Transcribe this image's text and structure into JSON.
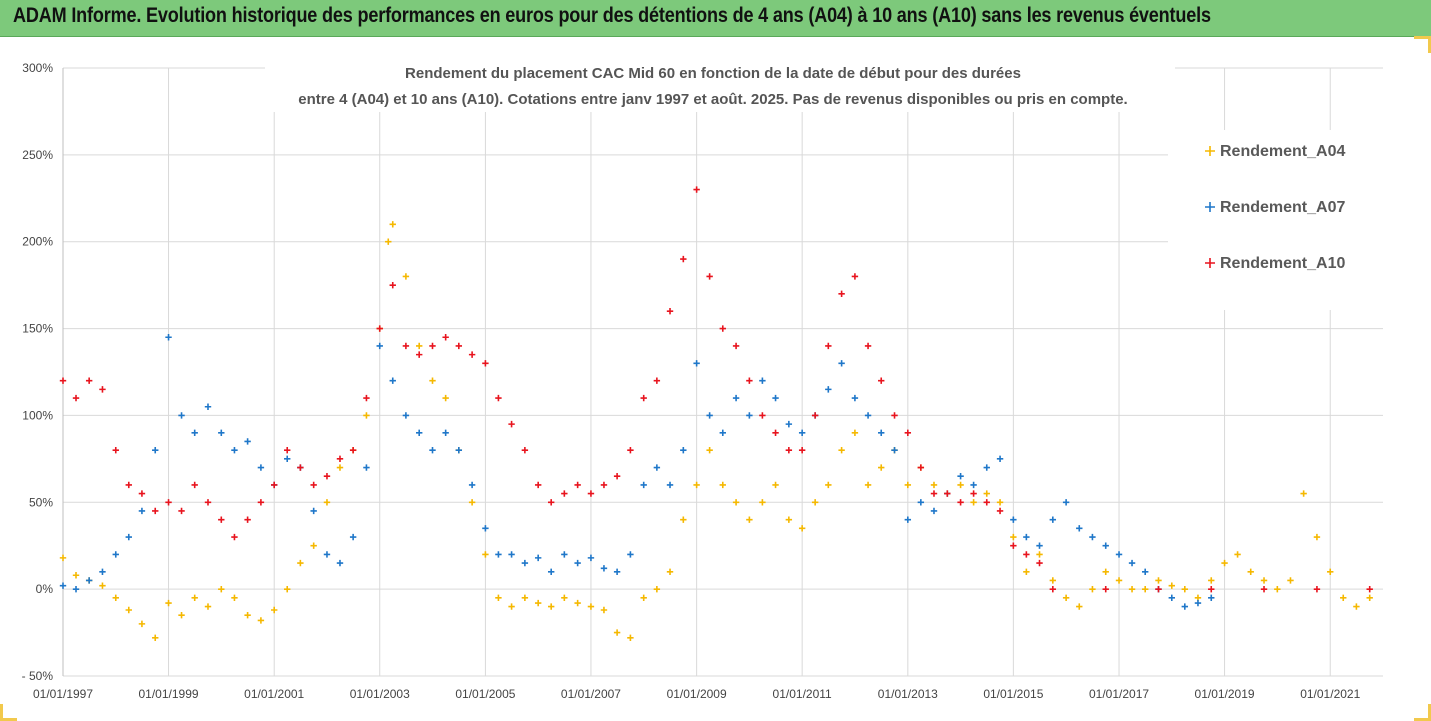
{
  "banner": {
    "title": "ADAM Informe. Evolution historique des performances en euros pour des détentions de 4 ans (A04) à 10 ans (A10) sans les revenus éventuels",
    "background": "#7dc97b"
  },
  "chart_data": {
    "type": "scatter",
    "marker": "plus",
    "title_lines": [
      "Rendement du placement CAC Mid 60 en fonction de la date de début pour des durées",
      "entre 4 (A04) et 10 ans (A10). Cotations entre janv 1997 et août. 2025. Pas de revenus disponibles ou pris en compte."
    ],
    "xlabel": "",
    "ylabel": "",
    "x_ticks": [
      "01/01/1997",
      "01/01/1999",
      "01/01/2001",
      "01/01/2003",
      "01/01/2005",
      "01/01/2007",
      "01/01/2009",
      "01/01/2011",
      "01/01/2013",
      "01/01/2015",
      "01/01/2017",
      "01/01/2019",
      "01/01/2021"
    ],
    "xlim": [
      "1997-01-01",
      "2022-01-01"
    ],
    "y_ticks": [
      "- 50%",
      "0%",
      "50%",
      "100%",
      "150%",
      "200%",
      "250%",
      "300%"
    ],
    "ylim": [
      -50,
      300
    ],
    "y_unit": "%",
    "grid": "horizontal and vertical",
    "legend_position": "right",
    "series": [
      {
        "name": "Rendement_A04",
        "color": "#f5b800",
        "points": [
          [
            "1997-01-01",
            18
          ],
          [
            "1997-04-01",
            8
          ],
          [
            "1997-07-01",
            5
          ],
          [
            "1997-10-01",
            2
          ],
          [
            "1998-01-01",
            -5
          ],
          [
            "1998-04-01",
            -12
          ],
          [
            "1998-07-01",
            -20
          ],
          [
            "1998-10-01",
            -28
          ],
          [
            "1999-01-01",
            -8
          ],
          [
            "1999-04-01",
            -15
          ],
          [
            "1999-07-01",
            -5
          ],
          [
            "1999-10-01",
            -10
          ],
          [
            "2000-01-01",
            0
          ],
          [
            "2000-04-01",
            -5
          ],
          [
            "2000-07-01",
            -15
          ],
          [
            "2000-10-01",
            -18
          ],
          [
            "2001-01-01",
            -12
          ],
          [
            "2001-04-01",
            0
          ],
          [
            "2001-07-01",
            15
          ],
          [
            "2001-10-01",
            25
          ],
          [
            "2002-01-01",
            50
          ],
          [
            "2002-04-01",
            70
          ],
          [
            "2002-07-01",
            80
          ],
          [
            "2002-10-01",
            100
          ],
          [
            "2003-01-01",
            150
          ],
          [
            "2003-03-01",
            200
          ],
          [
            "2003-04-01",
            210
          ],
          [
            "2003-07-01",
            180
          ],
          [
            "2003-10-01",
            140
          ],
          [
            "2004-01-01",
            120
          ],
          [
            "2004-04-01",
            110
          ],
          [
            "2004-07-01",
            80
          ],
          [
            "2004-10-01",
            50
          ],
          [
            "2005-01-01",
            20
          ],
          [
            "2005-04-01",
            -5
          ],
          [
            "2005-07-01",
            -10
          ],
          [
            "2005-10-01",
            -5
          ],
          [
            "2006-01-01",
            -8
          ],
          [
            "2006-04-01",
            -10
          ],
          [
            "2006-07-01",
            -5
          ],
          [
            "2006-10-01",
            -8
          ],
          [
            "2007-01-01",
            -10
          ],
          [
            "2007-04-01",
            -12
          ],
          [
            "2007-07-01",
            -25
          ],
          [
            "2007-10-01",
            -28
          ],
          [
            "2008-01-01",
            -5
          ],
          [
            "2008-04-01",
            0
          ],
          [
            "2008-07-01",
            10
          ],
          [
            "2008-10-01",
            40
          ],
          [
            "2009-01-01",
            60
          ],
          [
            "2009-04-01",
            80
          ],
          [
            "2009-07-01",
            60
          ],
          [
            "2009-10-01",
            50
          ],
          [
            "2010-01-01",
            40
          ],
          [
            "2010-04-01",
            50
          ],
          [
            "2010-07-01",
            60
          ],
          [
            "2010-10-01",
            40
          ],
          [
            "2011-01-01",
            35
          ],
          [
            "2011-04-01",
            50
          ],
          [
            "2011-07-01",
            60
          ],
          [
            "2011-10-01",
            80
          ],
          [
            "2012-01-01",
            90
          ],
          [
            "2012-04-01",
            60
          ],
          [
            "2012-07-01",
            70
          ],
          [
            "2012-10-01",
            80
          ],
          [
            "2013-01-01",
            60
          ],
          [
            "2013-04-01",
            70
          ],
          [
            "2013-07-01",
            60
          ],
          [
            "2013-10-01",
            55
          ],
          [
            "2014-01-01",
            60
          ],
          [
            "2014-04-01",
            50
          ],
          [
            "2014-07-01",
            55
          ],
          [
            "2014-10-01",
            50
          ],
          [
            "2015-01-01",
            30
          ],
          [
            "2015-04-01",
            10
          ],
          [
            "2015-07-01",
            20
          ],
          [
            "2015-10-01",
            5
          ],
          [
            "2016-01-01",
            -5
          ],
          [
            "2016-04-01",
            -10
          ],
          [
            "2016-07-01",
            0
          ],
          [
            "2016-10-01",
            10
          ],
          [
            "2017-01-01",
            5
          ],
          [
            "2017-04-01",
            0
          ],
          [
            "2017-07-01",
            0
          ],
          [
            "2017-10-01",
            5
          ],
          [
            "2018-01-01",
            2
          ],
          [
            "2018-04-01",
            0
          ],
          [
            "2018-07-01",
            -5
          ],
          [
            "2018-10-01",
            5
          ],
          [
            "2019-01-01",
            15
          ],
          [
            "2019-04-01",
            20
          ],
          [
            "2019-07-01",
            10
          ],
          [
            "2019-10-01",
            5
          ],
          [
            "2020-01-01",
            0
          ],
          [
            "2020-04-01",
            5
          ],
          [
            "2020-07-01",
            55
          ],
          [
            "2020-10-01",
            30
          ],
          [
            "2021-01-01",
            10
          ],
          [
            "2021-04-01",
            -5
          ],
          [
            "2021-07-01",
            -10
          ],
          [
            "2021-10-01",
            -5
          ]
        ]
      },
      {
        "name": "Rendement_A07",
        "color": "#1f77c9",
        "points": [
          [
            "1997-01-01",
            2
          ],
          [
            "1997-04-01",
            0
          ],
          [
            "1997-07-01",
            5
          ],
          [
            "1997-10-01",
            10
          ],
          [
            "1998-01-01",
            20
          ],
          [
            "1998-04-01",
            30
          ],
          [
            "1998-07-01",
            45
          ],
          [
            "1998-10-01",
            80
          ],
          [
            "1999-01-01",
            145
          ],
          [
            "1999-04-01",
            100
          ],
          [
            "1999-07-01",
            90
          ],
          [
            "1999-10-01",
            105
          ],
          [
            "2000-01-01",
            90
          ],
          [
            "2000-04-01",
            80
          ],
          [
            "2000-07-01",
            85
          ],
          [
            "2000-10-01",
            70
          ],
          [
            "2001-01-01",
            60
          ],
          [
            "2001-04-01",
            75
          ],
          [
            "2001-07-01",
            70
          ],
          [
            "2001-10-01",
            45
          ],
          [
            "2002-01-01",
            20
          ],
          [
            "2002-04-01",
            15
          ],
          [
            "2002-07-01",
            30
          ],
          [
            "2002-10-01",
            70
          ],
          [
            "2003-01-01",
            140
          ],
          [
            "2003-04-01",
            120
          ],
          [
            "2003-07-01",
            100
          ],
          [
            "2003-10-01",
            90
          ],
          [
            "2004-01-01",
            80
          ],
          [
            "2004-04-01",
            90
          ],
          [
            "2004-07-01",
            80
          ],
          [
            "2004-10-01",
            60
          ],
          [
            "2005-01-01",
            35
          ],
          [
            "2005-04-01",
            20
          ],
          [
            "2005-07-01",
            20
          ],
          [
            "2005-10-01",
            15
          ],
          [
            "2006-01-01",
            18
          ],
          [
            "2006-04-01",
            10
          ],
          [
            "2006-07-01",
            20
          ],
          [
            "2006-10-01",
            15
          ],
          [
            "2007-01-01",
            18
          ],
          [
            "2007-04-01",
            12
          ],
          [
            "2007-07-01",
            10
          ],
          [
            "2007-10-01",
            20
          ],
          [
            "2008-01-01",
            60
          ],
          [
            "2008-04-01",
            70
          ],
          [
            "2008-07-01",
            60
          ],
          [
            "2008-10-01",
            80
          ],
          [
            "2009-01-01",
            130
          ],
          [
            "2009-04-01",
            100
          ],
          [
            "2009-07-01",
            90
          ],
          [
            "2009-10-01",
            110
          ],
          [
            "2010-01-01",
            100
          ],
          [
            "2010-04-01",
            120
          ],
          [
            "2010-07-01",
            110
          ],
          [
            "2010-10-01",
            95
          ],
          [
            "2011-01-01",
            90
          ],
          [
            "2011-04-01",
            100
          ],
          [
            "2011-07-01",
            115
          ],
          [
            "2011-10-01",
            130
          ],
          [
            "2012-01-01",
            110
          ],
          [
            "2012-04-01",
            100
          ],
          [
            "2012-07-01",
            90
          ],
          [
            "2012-10-01",
            80
          ],
          [
            "2013-01-01",
            40
          ],
          [
            "2013-04-01",
            50
          ],
          [
            "2013-07-01",
            45
          ],
          [
            "2013-10-01",
            55
          ],
          [
            "2014-01-01",
            65
          ],
          [
            "2014-04-01",
            60
          ],
          [
            "2014-07-01",
            70
          ],
          [
            "2014-10-01",
            75
          ],
          [
            "2015-01-01",
            40
          ],
          [
            "2015-04-01",
            30
          ],
          [
            "2015-07-01",
            25
          ],
          [
            "2015-10-01",
            40
          ],
          [
            "2016-01-01",
            50
          ],
          [
            "2016-04-01",
            35
          ],
          [
            "2016-07-01",
            30
          ],
          [
            "2016-10-01",
            25
          ],
          [
            "2017-01-01",
            20
          ],
          [
            "2017-04-01",
            15
          ],
          [
            "2017-07-01",
            10
          ],
          [
            "2017-10-01",
            0
          ],
          [
            "2018-01-01",
            -5
          ],
          [
            "2018-04-01",
            -10
          ],
          [
            "2018-07-01",
            -8
          ],
          [
            "2018-10-01",
            -5
          ]
        ]
      },
      {
        "name": "Rendement_A10",
        "color": "#e8141e",
        "points": [
          [
            "1997-01-01",
            120
          ],
          [
            "1997-04-01",
            110
          ],
          [
            "1997-07-01",
            120
          ],
          [
            "1997-10-01",
            115
          ],
          [
            "1998-01-01",
            80
          ],
          [
            "1998-04-01",
            60
          ],
          [
            "1998-07-01",
            55
          ],
          [
            "1998-10-01",
            45
          ],
          [
            "1999-01-01",
            50
          ],
          [
            "1999-04-01",
            45
          ],
          [
            "1999-07-01",
            60
          ],
          [
            "1999-10-01",
            50
          ],
          [
            "2000-01-01",
            40
          ],
          [
            "2000-04-01",
            30
          ],
          [
            "2000-07-01",
            40
          ],
          [
            "2000-10-01",
            50
          ],
          [
            "2001-01-01",
            60
          ],
          [
            "2001-04-01",
            80
          ],
          [
            "2001-07-01",
            70
          ],
          [
            "2001-10-01",
            60
          ],
          [
            "2002-01-01",
            65
          ],
          [
            "2002-04-01",
            75
          ],
          [
            "2002-07-01",
            80
          ],
          [
            "2002-10-01",
            110
          ],
          [
            "2003-01-01",
            150
          ],
          [
            "2003-04-01",
            175
          ],
          [
            "2003-07-01",
            140
          ],
          [
            "2003-10-01",
            135
          ],
          [
            "2004-01-01",
            140
          ],
          [
            "2004-04-01",
            145
          ],
          [
            "2004-07-01",
            140
          ],
          [
            "2004-10-01",
            135
          ],
          [
            "2005-01-01",
            130
          ],
          [
            "2005-04-01",
            110
          ],
          [
            "2005-07-01",
            95
          ],
          [
            "2005-10-01",
            80
          ],
          [
            "2006-01-01",
            60
          ],
          [
            "2006-04-01",
            50
          ],
          [
            "2006-07-01",
            55
          ],
          [
            "2006-10-01",
            60
          ],
          [
            "2007-01-01",
            55
          ],
          [
            "2007-04-01",
            60
          ],
          [
            "2007-07-01",
            65
          ],
          [
            "2007-10-01",
            80
          ],
          [
            "2008-01-01",
            110
          ],
          [
            "2008-04-01",
            120
          ],
          [
            "2008-07-01",
            160
          ],
          [
            "2008-10-01",
            190
          ],
          [
            "2009-01-01",
            230
          ],
          [
            "2009-04-01",
            180
          ],
          [
            "2009-07-01",
            150
          ],
          [
            "2009-10-01",
            140
          ],
          [
            "2010-01-01",
            120
          ],
          [
            "2010-04-01",
            100
          ],
          [
            "2010-07-01",
            90
          ],
          [
            "2010-10-01",
            80
          ],
          [
            "2011-01-01",
            80
          ],
          [
            "2011-04-01",
            100
          ],
          [
            "2011-07-01",
            140
          ],
          [
            "2011-10-01",
            170
          ],
          [
            "2012-01-01",
            180
          ],
          [
            "2012-04-01",
            140
          ],
          [
            "2012-07-01",
            120
          ],
          [
            "2012-10-01",
            100
          ],
          [
            "2013-01-01",
            90
          ],
          [
            "2013-04-01",
            70
          ],
          [
            "2013-07-01",
            55
          ],
          [
            "2013-10-01",
            55
          ],
          [
            "2014-01-01",
            50
          ],
          [
            "2014-04-01",
            55
          ],
          [
            "2014-07-01",
            50
          ],
          [
            "2014-10-01",
            45
          ],
          [
            "2015-01-01",
            25
          ],
          [
            "2015-04-01",
            20
          ],
          [
            "2015-07-01",
            15
          ],
          [
            "2015-10-01",
            0
          ],
          [
            "2016-10-01",
            0
          ],
          [
            "2017-10-01",
            0
          ],
          [
            "2018-10-01",
            0
          ],
          [
            "2019-10-01",
            0
          ],
          [
            "2020-10-01",
            0
          ],
          [
            "2021-10-01",
            0
          ]
        ]
      }
    ]
  }
}
